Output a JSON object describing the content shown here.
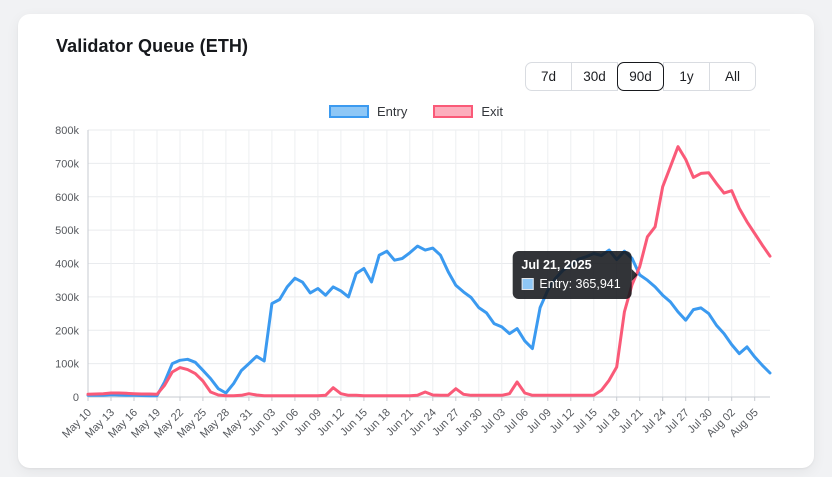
{
  "card": {
    "title": "Validator Queue (ETH)"
  },
  "range_selector": {
    "options": [
      {
        "label": "7d",
        "selected": false
      },
      {
        "label": "30d",
        "selected": false
      },
      {
        "label": "90d",
        "selected": true
      },
      {
        "label": "1y",
        "selected": false
      },
      {
        "label": "All",
        "selected": false
      }
    ]
  },
  "legend": {
    "items": [
      {
        "label": "Entry",
        "line_color": "#3b9af0",
        "fill_color": "#8ec7f6"
      },
      {
        "label": "Exit",
        "line_color": "#fa5a78",
        "fill_color": "#fcaebd"
      }
    ]
  },
  "tooltip": {
    "title": "Jul 21, 2025",
    "label": "Entry: 365,941",
    "anchor_date": "Jul 21",
    "anchor_series": "Entry",
    "swatch_color": "#8ec7f6"
  },
  "chart_data": {
    "type": "line",
    "title": "Validator Queue (ETH)",
    "grid": true,
    "legend_position": "top",
    "ylim": [
      0,
      800000
    ],
    "y_ticks": [
      "0",
      "100k",
      "200k",
      "300k",
      "400k",
      "500k",
      "600k",
      "700k",
      "800k"
    ],
    "x_tick_interval": 3,
    "x": [
      "May 10",
      "May 11",
      "May 12",
      "May 13",
      "May 14",
      "May 15",
      "May 16",
      "May 17",
      "May 18",
      "May 19",
      "May 20",
      "May 21",
      "May 22",
      "May 23",
      "May 24",
      "May 25",
      "May 26",
      "May 27",
      "May 28",
      "May 29",
      "May 30",
      "May 31",
      "Jun 01",
      "Jun 02",
      "Jun 03",
      "Jun 04",
      "Jun 05",
      "Jun 06",
      "Jun 07",
      "Jun 08",
      "Jun 09",
      "Jun 10",
      "Jun 11",
      "Jun 12",
      "Jun 13",
      "Jun 14",
      "Jun 15",
      "Jun 16",
      "Jun 17",
      "Jun 18",
      "Jun 19",
      "Jun 20",
      "Jun 21",
      "Jun 22",
      "Jun 23",
      "Jun 24",
      "Jun 25",
      "Jun 26",
      "Jun 27",
      "Jun 28",
      "Jun 29",
      "Jun 30",
      "Jul 01",
      "Jul 02",
      "Jul 03",
      "Jul 04",
      "Jul 05",
      "Jul 06",
      "Jul 07",
      "Jul 08",
      "Jul 09",
      "Jul 10",
      "Jul 11",
      "Jul 12",
      "Jul 13",
      "Jul 14",
      "Jul 15",
      "Jul 16",
      "Jul 17",
      "Jul 18",
      "Jul 19",
      "Jul 20",
      "Jul 21",
      "Jul 22",
      "Jul 23",
      "Jul 24",
      "Jul 25",
      "Jul 26",
      "Jul 27",
      "Jul 28",
      "Jul 29",
      "Jul 30",
      "Jul 31",
      "Aug 01",
      "Aug 02",
      "Aug 03",
      "Aug 04",
      "Aug 05",
      "Aug 06",
      "Aug 07"
    ],
    "series": [
      {
        "name": "Entry",
        "color": "#3b9af0",
        "values": [
          5000,
          5000,
          5200,
          7000,
          6000,
          5000,
          5000,
          4500,
          4000,
          4000,
          45000,
          100000,
          110000,
          113000,
          104000,
          80000,
          55000,
          25000,
          12000,
          40000,
          79000,
          100000,
          122000,
          108000,
          280000,
          292000,
          330000,
          356000,
          344000,
          312000,
          325000,
          305000,
          330000,
          318000,
          300000,
          370000,
          385000,
          345000,
          425000,
          437000,
          410000,
          415000,
          432000,
          452000,
          440000,
          446000,
          425000,
          375000,
          335000,
          315000,
          298000,
          268000,
          252000,
          220000,
          210000,
          190000,
          205000,
          168000,
          145000,
          268000,
          320000,
          355000,
          380000,
          395000,
          413000,
          420000,
          430000,
          424000,
          440000,
          412000,
          437000,
          415000,
          365941,
          350000,
          330000,
          305000,
          285000,
          255000,
          230000,
          262000,
          267000,
          250000,
          215000,
          190000,
          157000,
          130000,
          150000,
          120000,
          95000,
          72000
        ]
      },
      {
        "name": "Exit",
        "color": "#fa5a78",
        "values": [
          8000,
          9000,
          10000,
          12000,
          12000,
          11000,
          10000,
          9000,
          9000,
          8000,
          35000,
          75000,
          88000,
          82000,
          70000,
          48000,
          15000,
          6000,
          4000,
          4000,
          5000,
          10000,
          6000,
          4000,
          4000,
          4000,
          4000,
          4000,
          4000,
          4000,
          4000,
          5000,
          28000,
          10000,
          5000,
          5000,
          4000,
          4000,
          4000,
          4000,
          4000,
          4000,
          4000,
          5000,
          15000,
          6000,
          5000,
          5000,
          25000,
          8000,
          5000,
          5000,
          5000,
          5000,
          5000,
          10000,
          45000,
          12000,
          5000,
          5000,
          5000,
          5000,
          5000,
          5000,
          5000,
          5000,
          5000,
          20000,
          50000,
          90000,
          255000,
          337000,
          390000,
          480000,
          510000,
          630000,
          690000,
          750000,
          712000,
          658000,
          670000,
          672000,
          640000,
          611000,
          618000,
          565000,
          525000,
          490000,
          455000,
          422000
        ]
      }
    ]
  }
}
